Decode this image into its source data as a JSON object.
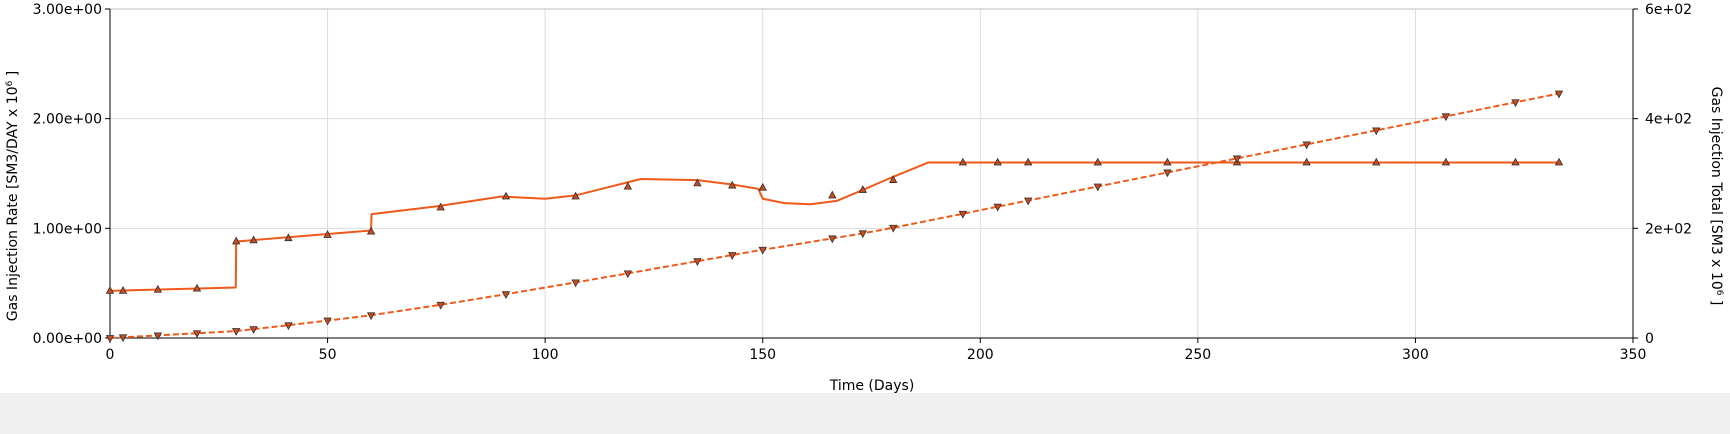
{
  "chart_data": {
    "type": "line",
    "xlabel": "Time (Days)",
    "ylabel_left": "Gas Injection Rate [SM3/DAY x 10",
    "ylabel_left_sup": "6",
    "ylabel_left_suffix": " ]",
    "ylabel_right": "Gas Injection Total [SM3 x 10",
    "ylabel_right_sup": "6",
    "ylabel_right_suffix": " ]",
    "xlim": [
      0,
      350
    ],
    "ylim_left": [
      0,
      3
    ],
    "ylim_right": [
      0,
      600
    ],
    "x_ticks": [
      {
        "v": 0,
        "label": "0"
      },
      {
        "v": 50,
        "label": "50"
      },
      {
        "v": 100,
        "label": "100"
      },
      {
        "v": 150,
        "label": "150"
      },
      {
        "v": 200,
        "label": "200"
      },
      {
        "v": 250,
        "label": "250"
      },
      {
        "v": 300,
        "label": "300"
      },
      {
        "v": 350,
        "label": "350"
      }
    ],
    "y_left_ticks": [
      {
        "v": 0,
        "label": "0.00e+00"
      },
      {
        "v": 1,
        "label": "1.00e+00"
      },
      {
        "v": 2,
        "label": "2.00e+00"
      },
      {
        "v": 3,
        "label": "3.00e+00"
      }
    ],
    "y_right_ticks": [
      {
        "v": 0,
        "label": "0"
      },
      {
        "v": 200,
        "label": "2e+02"
      },
      {
        "v": 400,
        "label": "4e+02"
      },
      {
        "v": 600,
        "label": "6e+02"
      }
    ],
    "grid": true,
    "series": [
      {
        "axis": "left",
        "color": "#ee5a1a",
        "line_style": "solid",
        "marker": "triangle-up",
        "x": [
          0,
          28.9,
          29,
          60,
          60.1,
          75,
          90,
          100,
          107,
          115,
          122,
          135,
          143,
          149,
          150,
          155,
          161,
          167,
          173,
          180,
          188,
          195,
          204,
          211,
          227,
          243,
          259,
          275,
          291,
          307,
          323,
          333
        ],
        "y": [
          0.43,
          0.46,
          0.88,
          0.98,
          1.13,
          1.2,
          1.29,
          1.27,
          1.3,
          1.38,
          1.45,
          1.44,
          1.4,
          1.36,
          1.27,
          1.23,
          1.22,
          1.25,
          1.35,
          1.47,
          1.6,
          1.6,
          1.6,
          1.6,
          1.6,
          1.6,
          1.6,
          1.6,
          1.6,
          1.6,
          1.6,
          1.6
        ],
        "markers_x": [
          0,
          3,
          11,
          20,
          29,
          33,
          41,
          50,
          60,
          76,
          91,
          107,
          119,
          135,
          143,
          150,
          166,
          173,
          180,
          196,
          204,
          211,
          227,
          243,
          259,
          275,
          291,
          307,
          323,
          333
        ],
        "markers_y": [
          0.43,
          0.43,
          0.44,
          0.45,
          0.88,
          0.89,
          0.91,
          0.94,
          0.97,
          1.19,
          1.29,
          1.29,
          1.38,
          1.41,
          1.39,
          1.37,
          1.3,
          1.35,
          1.44,
          1.6,
          1.6,
          1.6,
          1.6,
          1.6,
          1.6,
          1.6,
          1.6,
          1.6,
          1.6,
          1.6
        ]
      },
      {
        "axis": "right",
        "color": "#ee5a1a",
        "line_style": "dashed",
        "marker": "triangle-down",
        "x": [
          0,
          3,
          11,
          20,
          29,
          33,
          41,
          50,
          60,
          76,
          91,
          107,
          119,
          135,
          143,
          150,
          166,
          173,
          180,
          196,
          204,
          211,
          227,
          243,
          259,
          275,
          291,
          307,
          323,
          333
        ],
        "y": [
          0,
          1.3,
          4.8,
          8.7,
          12.7,
          16.2,
          23.3,
          31.8,
          41.4,
          60.6,
          79.9,
          101.4,
          117.8,
          140.1,
          151.3,
          160.9,
          181.6,
          190.9,
          201.1,
          226.6,
          239.5,
          250.7,
          276.3,
          301.9,
          327.5,
          353.1,
          378.7,
          404.3,
          429.9,
          445.9
        ]
      }
    ]
  }
}
